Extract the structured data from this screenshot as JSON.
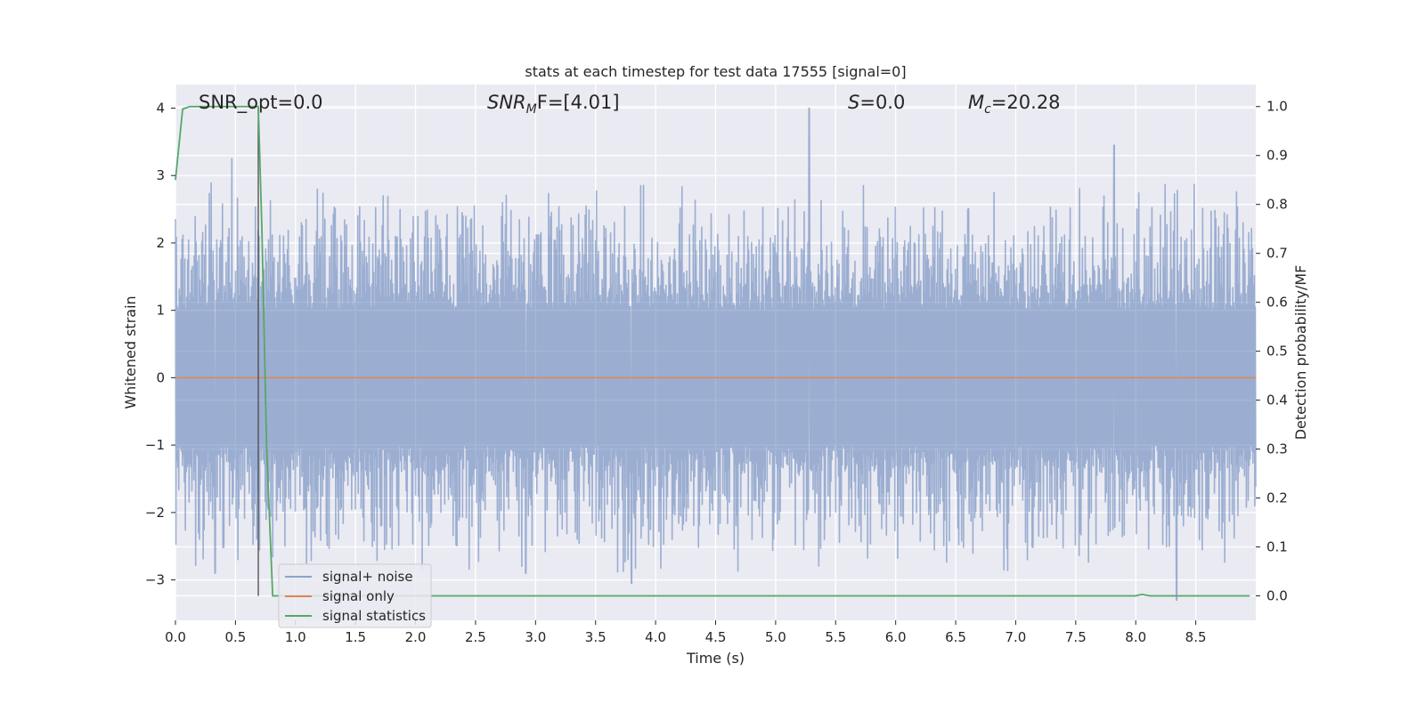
{
  "chart_data": {
    "type": "line",
    "title": "stats at each timestep for test data 17555 [signal=0]",
    "xlabel": "Time (s)",
    "ylabel_left": "Whitened strain",
    "ylabel_right": "Detection probability/MF",
    "xlim": [
      0.0,
      9.0
    ],
    "ylim_left": [
      -3.6,
      4.35
    ],
    "ylim_right": [
      -0.05,
      1.045
    ],
    "x_ticks": [
      "0.0",
      "0.5",
      "1.0",
      "1.5",
      "2.0",
      "2.5",
      "3.0",
      "3.5",
      "4.0",
      "4.5",
      "5.0",
      "5.5",
      "6.0",
      "6.5",
      "7.0",
      "7.5",
      "8.0",
      "8.5"
    ],
    "x_tick_values": [
      0.0,
      0.5,
      1.0,
      1.5,
      2.0,
      2.5,
      3.0,
      3.5,
      4.0,
      4.5,
      5.0,
      5.5,
      6.0,
      6.5,
      7.0,
      7.5,
      8.0,
      8.5
    ],
    "y_left_ticks": [
      "−3",
      "−2",
      "−1",
      "0",
      "1",
      "2",
      "3",
      "4"
    ],
    "y_left_tick_values": [
      -3,
      -2,
      -1,
      0,
      1,
      2,
      3,
      4
    ],
    "y_right_ticks": [
      "0.0",
      "0.1",
      "0.2",
      "0.3",
      "0.4",
      "0.5",
      "0.6",
      "0.7",
      "0.8",
      "0.9",
      "1.0"
    ],
    "y_right_tick_values": [
      0.0,
      0.1,
      0.2,
      0.3,
      0.4,
      0.5,
      0.6,
      0.7,
      0.8,
      0.9,
      1.0
    ],
    "grid": true,
    "legend_position": "lower-left",
    "annotations": {
      "snr_opt": "SNR_opt=0.0",
      "snr_mf_base": "SNR",
      "snr_mf_sub": "M",
      "snr_mf_rest": "F=[4.01]",
      "s_var": "S",
      "s_rest": "=0.0",
      "mc_base": "M",
      "mc_sub": "c",
      "mc_rest": "=20.28"
    },
    "vertical_marker_x": 0.69,
    "series": [
      {
        "name": "signal+ noise",
        "color": "#4c72b0",
        "kind": "noise",
        "duration": 9.0,
        "sample_count": 2300,
        "envelope": [
          -3.3,
          4.0
        ],
        "notable_spikes": [
          [
            5.28,
            4.01
          ],
          [
            7.82,
            3.45
          ],
          [
            0.47,
            3.25
          ],
          [
            8.34,
            -3.3
          ],
          [
            3.8,
            -3.05
          ],
          [
            0.33,
            -2.9
          ],
          [
            2.92,
            -2.9
          ]
        ]
      },
      {
        "name": "signal only",
        "color": "#dd8452",
        "kind": "constant",
        "x": [
          0.0,
          9.0
        ],
        "y": [
          0.0,
          0.0
        ]
      },
      {
        "name": "signal statistics",
        "color": "#55a868",
        "kind": "probability",
        "x": [
          0.0,
          0.06,
          0.12,
          0.2,
          0.4,
          0.6,
          0.66,
          0.69,
          0.72,
          0.76,
          0.81,
          1.0,
          2.0,
          4.0,
          6.0,
          7.9,
          8.0,
          8.05,
          8.12,
          8.2,
          8.5,
          8.95
        ],
        "y": [
          0.85,
          0.995,
          1.0,
          1.0,
          1.0,
          1.0,
          1.0,
          1.0,
          0.75,
          0.3,
          0.0,
          0.0,
          0.0,
          0.0,
          0.0,
          0.0,
          0.0,
          0.003,
          0.0,
          0.0,
          0.0,
          0.0
        ]
      }
    ]
  },
  "colors": {
    "plot_background": "#eaeaf2",
    "grid": "#ffffff",
    "marker_line": "#4a4a4a"
  }
}
